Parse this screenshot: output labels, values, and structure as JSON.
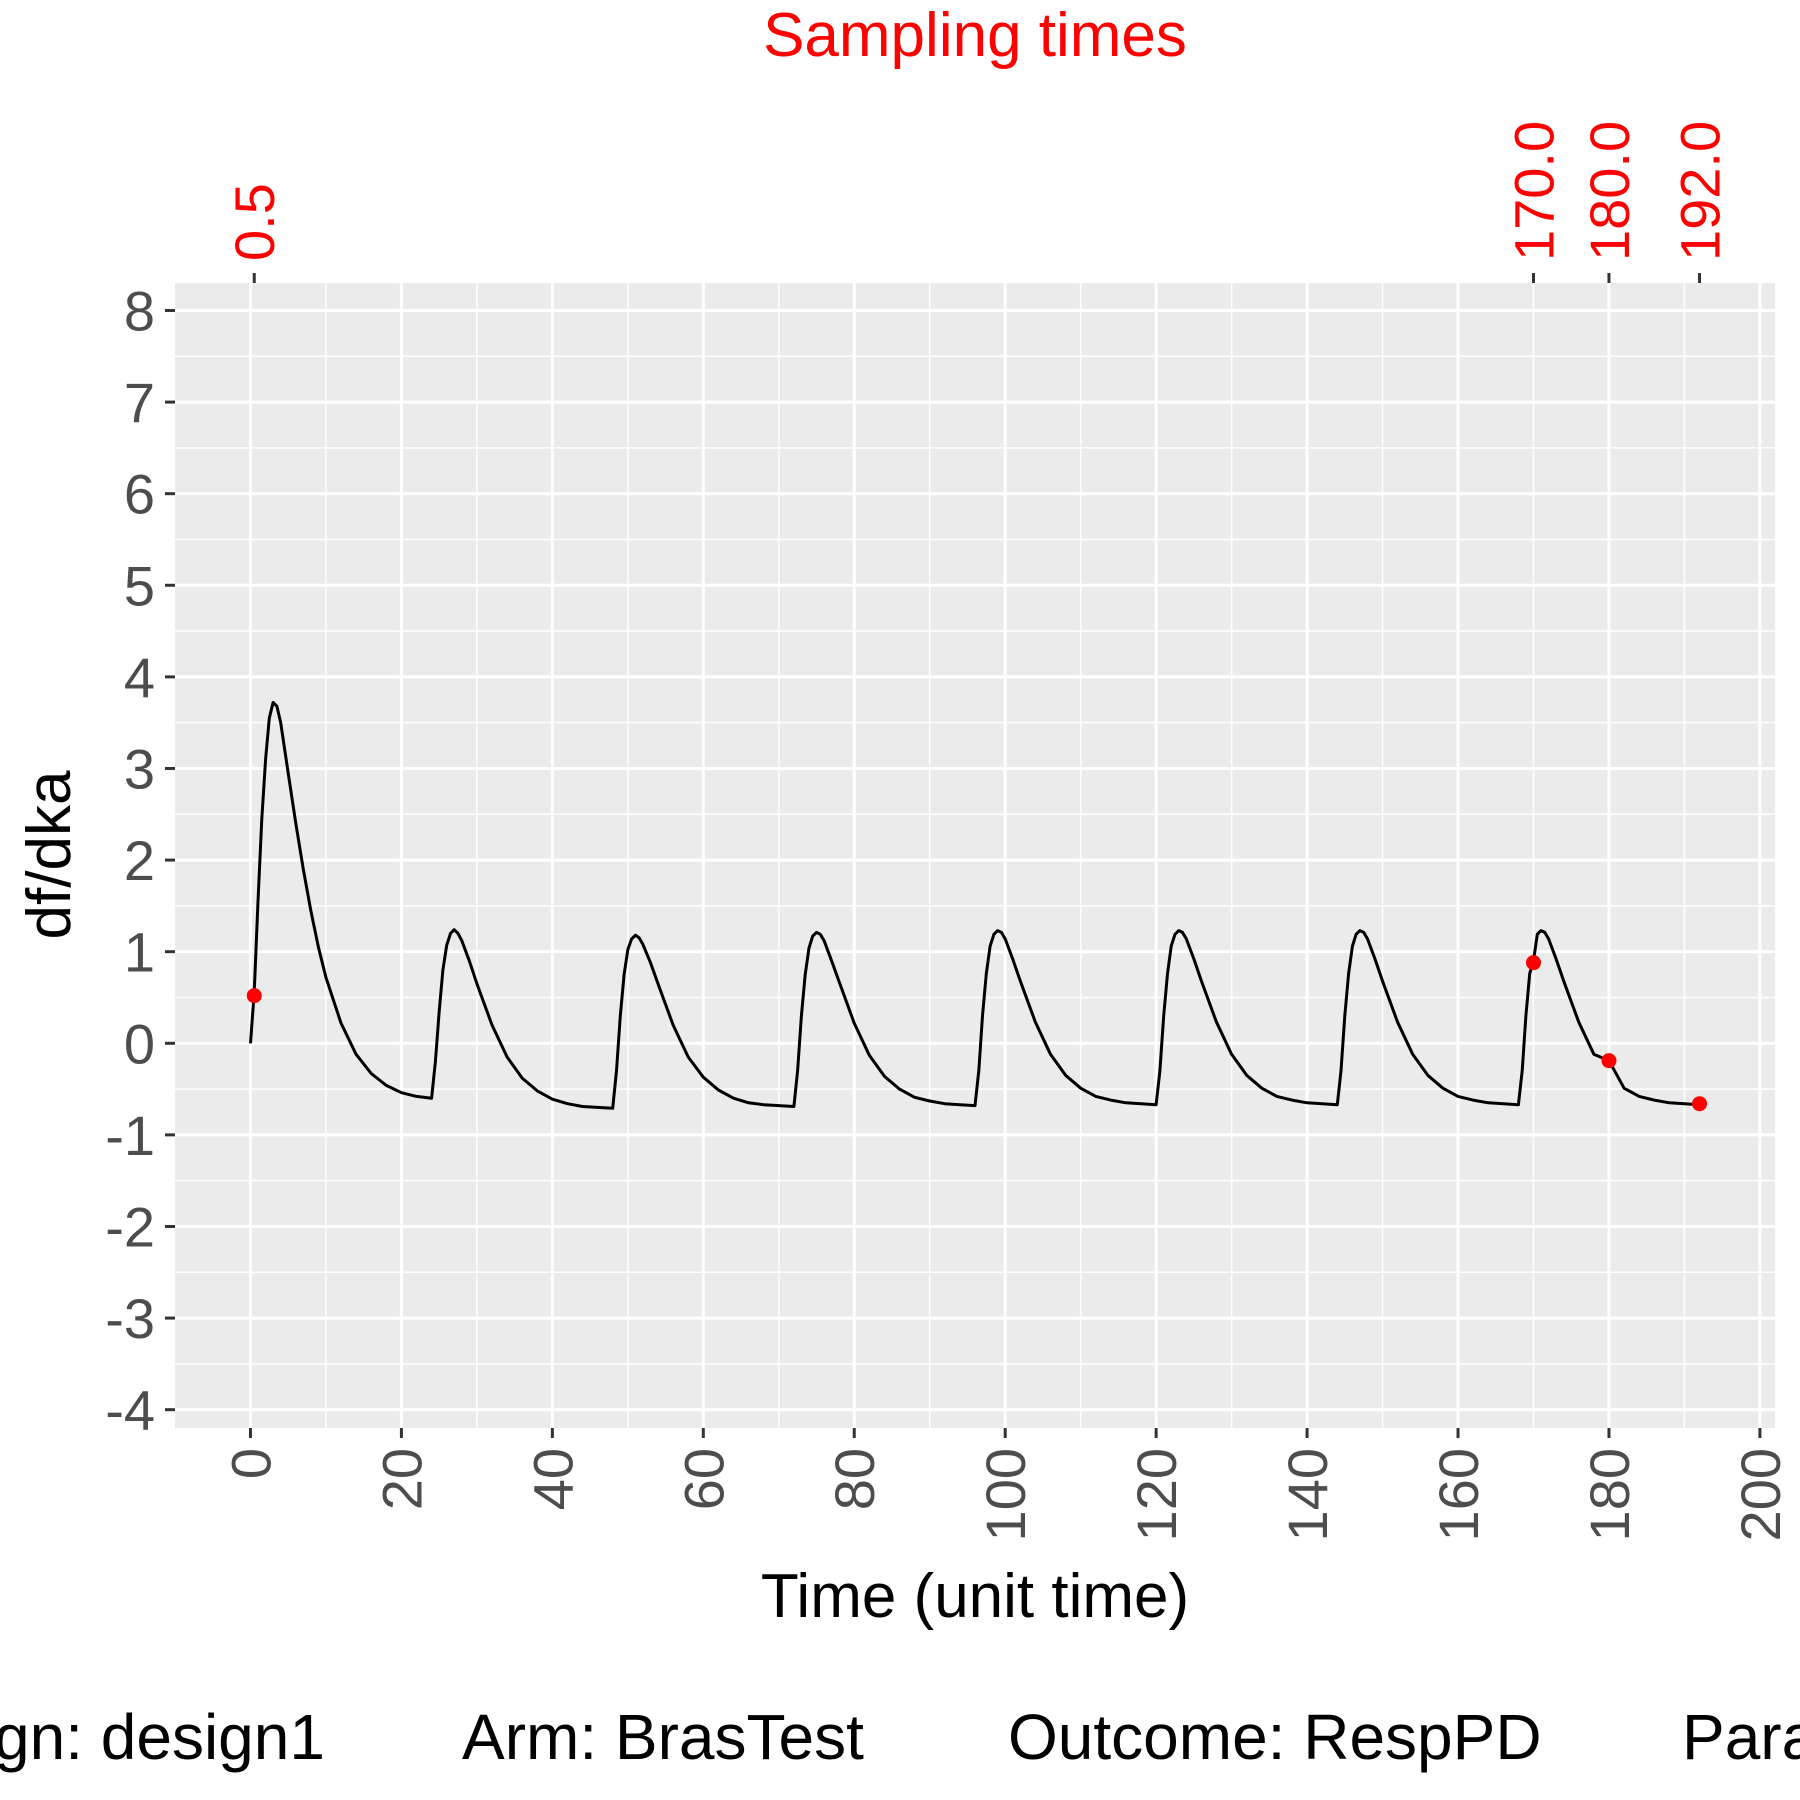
{
  "chart_data": {
    "type": "line",
    "title": "Sampling times",
    "xlabel": "Time (unit time)",
    "ylabel": "df/dka",
    "xlim": [
      -10,
      202
    ],
    "ylim": [
      -4.2,
      8.3
    ],
    "x_ticks": [
      0,
      20,
      40,
      60,
      80,
      100,
      120,
      140,
      160,
      180,
      200
    ],
    "y_ticks": [
      -4,
      -3,
      -2,
      -1,
      0,
      1,
      2,
      3,
      4,
      5,
      6,
      7,
      8
    ],
    "grid": true,
    "colors": {
      "panel": "#ebebeb",
      "grid": "#ffffff",
      "line": "#000000",
      "sampling": "#ff0000",
      "tick_text": "#4d4d4d"
    },
    "series": [
      {
        "x": [
          0,
          0.5,
          1,
          1.5,
          2,
          2.5,
          3,
          3.5,
          4,
          5,
          6,
          7,
          8,
          9,
          10,
          12,
          14,
          16,
          18,
          20,
          22,
          24,
          24.5,
          25,
          25.5,
          26,
          26.5,
          27,
          27.5,
          28,
          29,
          30,
          32,
          34,
          36,
          38,
          40,
          42,
          44,
          46,
          48,
          48.5,
          49,
          49.5,
          50,
          50.5,
          51,
          51.5,
          52,
          53,
          54,
          56,
          58,
          60,
          62,
          64,
          66,
          68,
          70,
          72,
          72.5,
          73,
          73.5,
          74,
          74.5,
          75,
          75.5,
          76,
          77,
          78,
          80,
          82,
          84,
          86,
          88,
          90,
          92,
          94,
          96,
          96.5,
          97,
          97.5,
          98,
          98.5,
          99,
          99.5,
          100,
          101,
          102,
          104,
          106,
          108,
          110,
          112,
          114,
          116,
          118,
          120,
          120.5,
          121,
          121.5,
          122,
          122.5,
          123,
          123.5,
          124,
          125,
          126,
          128,
          130,
          132,
          134,
          136,
          138,
          140,
          142,
          144,
          144.5,
          145,
          145.5,
          146,
          146.5,
          147,
          147.5,
          148,
          149,
          150,
          152,
          154,
          156,
          158,
          160,
          162,
          164,
          166,
          168,
          168.5,
          169,
          169.5,
          170,
          170.5,
          171,
          171.5,
          172,
          173,
          174,
          176,
          178,
          180,
          182,
          184,
          186,
          188,
          190,
          192
        ],
        "y": [
          0,
          0.55,
          1.55,
          2.45,
          3.1,
          3.55,
          3.72,
          3.68,
          3.5,
          2.95,
          2.4,
          1.9,
          1.45,
          1.05,
          0.72,
          0.22,
          -0.12,
          -0.33,
          -0.46,
          -0.54,
          -0.58,
          -0.6,
          -0.2,
          0.35,
          0.8,
          1.07,
          1.2,
          1.24,
          1.2,
          1.12,
          0.9,
          0.65,
          0.2,
          -0.15,
          -0.38,
          -0.52,
          -0.61,
          -0.66,
          -0.69,
          -0.7,
          -0.71,
          -0.3,
          0.3,
          0.75,
          1.02,
          1.14,
          1.18,
          1.15,
          1.08,
          0.88,
          0.65,
          0.2,
          -0.15,
          -0.37,
          -0.51,
          -0.6,
          -0.65,
          -0.67,
          -0.68,
          -0.69,
          -0.3,
          0.3,
          0.75,
          1.04,
          1.17,
          1.21,
          1.19,
          1.12,
          0.9,
          0.67,
          0.22,
          -0.13,
          -0.36,
          -0.5,
          -0.59,
          -0.63,
          -0.66,
          -0.67,
          -0.68,
          -0.3,
          0.3,
          0.76,
          1.06,
          1.19,
          1.23,
          1.21,
          1.14,
          0.92,
          0.68,
          0.23,
          -0.12,
          -0.35,
          -0.49,
          -0.58,
          -0.62,
          -0.65,
          -0.66,
          -0.67,
          -0.3,
          0.3,
          0.76,
          1.06,
          1.19,
          1.23,
          1.21,
          1.14,
          0.92,
          0.68,
          0.23,
          -0.12,
          -0.35,
          -0.49,
          -0.58,
          -0.62,
          -0.65,
          -0.66,
          -0.67,
          -0.3,
          0.3,
          0.76,
          1.06,
          1.19,
          1.23,
          1.21,
          1.14,
          0.92,
          0.68,
          0.23,
          -0.12,
          -0.35,
          -0.49,
          -0.58,
          -0.62,
          -0.65,
          -0.66,
          -0.67,
          -0.3,
          0.3,
          0.76,
          0.9,
          1.19,
          1.23,
          1.21,
          1.14,
          0.92,
          0.68,
          0.23,
          -0.12,
          -0.19,
          -0.49,
          -0.58,
          -0.62,
          -0.65,
          -0.66,
          -0.67
        ]
      }
    ],
    "sampling_times": {
      "labels": [
        "0.5",
        "170.0",
        "180.0",
        "192.0"
      ],
      "x": [
        0.5,
        170,
        180,
        192
      ],
      "y": [
        0.52,
        0.88,
        -0.19,
        -0.66
      ]
    }
  },
  "footer": {
    "design": "gn: design1",
    "arm": "Arm: BrasTest",
    "outcome": "Outcome: RespPD",
    "parameter": "Para"
  }
}
